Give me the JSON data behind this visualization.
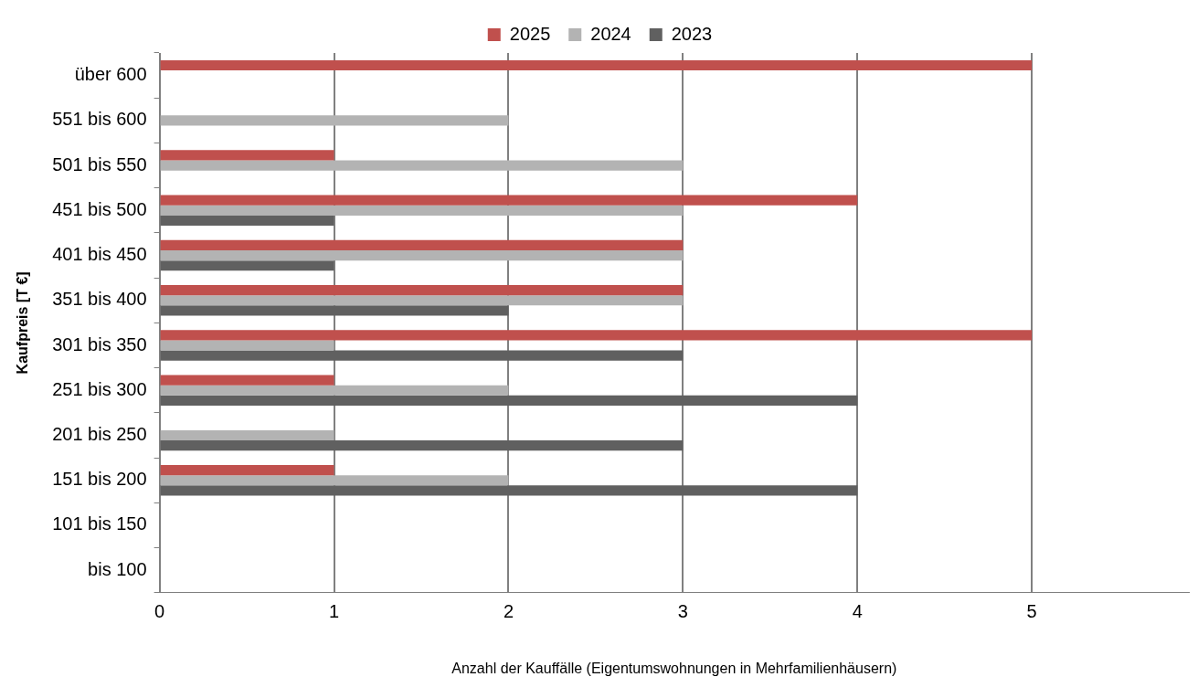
{
  "chart_data": {
    "type": "bar",
    "orientation": "horizontal",
    "xlabel": "Anzahl der Kauffälle (Eigentumswohnungen in Mehrfamilienhäusern)",
    "ylabel": "Kaufpreis [T €]",
    "categories": [
      "über 600",
      "551 bis 600",
      "501 bis 550",
      "451 bis 500",
      "401 bis 450",
      "351 bis 400",
      "301 bis 350",
      "251 bis 300",
      "201 bis 250",
      "151 bis 200",
      "101 bis 150",
      "bis 100"
    ],
    "series": [
      {
        "name": "2025",
        "color": "#c0504d",
        "values": [
          5,
          0,
          1,
          4,
          3,
          3,
          5,
          1,
          0,
          1,
          0,
          0
        ]
      },
      {
        "name": "2024",
        "color": "#b3b3b3",
        "values": [
          0,
          2,
          3,
          3,
          3,
          3,
          1,
          2,
          1,
          2,
          0,
          0
        ]
      },
      {
        "name": "2023",
        "color": "#606060",
        "values": [
          0,
          0,
          0,
          1,
          1,
          2,
          3,
          4,
          3,
          4,
          0,
          0
        ]
      }
    ],
    "xlim": [
      0,
      5.9
    ],
    "xticks": [
      0,
      1,
      2,
      3,
      4,
      5
    ],
    "grid": "x",
    "legend": "top"
  }
}
